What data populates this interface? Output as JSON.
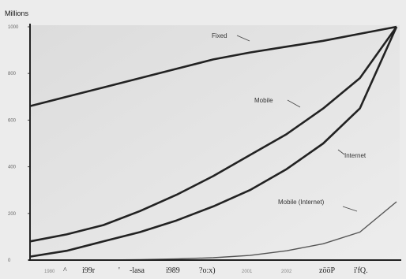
{
  "chart_data": {
    "type": "line",
    "title": "",
    "ylabel": "Millions",
    "xlabel": "",
    "y_ticks": [
      "1000",
      "800",
      "600",
      "400",
      "200",
      "0"
    ],
    "y_tick_values": [
      1000,
      800,
      600,
      400,
      200,
      0
    ],
    "x_ticks": [
      {
        "label": "1980",
        "faint": true
      },
      {
        "label": "^",
        "faint": false
      },
      {
        "label": "i99r",
        "faint": false
      },
      {
        "label": "'",
        "faint": false
      },
      {
        "label": "-lasa",
        "faint": false
      },
      {
        "label": "i989",
        "faint": false
      },
      {
        "label": "?o:x)",
        "faint": false
      },
      {
        "label": "2001",
        "faint": true
      },
      {
        "label": "2002",
        "faint": true
      },
      {
        "label": "zööP",
        "faint": false
      },
      {
        "label": "i'fQ.",
        "faint": false
      }
    ],
    "x_tick_values": [
      0,
      1,
      2,
      3,
      4,
      5,
      6,
      7,
      8,
      9,
      10
    ],
    "xlim": [
      0,
      10
    ],
    "ylim": [
      0,
      1000
    ],
    "series": [
      {
        "name": "Fixed",
        "x": [
          0,
          1,
          2,
          3,
          4,
          5,
          6,
          7,
          8,
          9,
          10
        ],
        "values": [
          660,
          700,
          740,
          780,
          820,
          860,
          890,
          915,
          940,
          970,
          1000
        ]
      },
      {
        "name": "Mobile",
        "x": [
          0,
          1,
          2,
          3,
          4,
          5,
          6,
          7,
          8,
          9,
          10
        ],
        "values": [
          80,
          110,
          150,
          210,
          280,
          360,
          450,
          540,
          650,
          780,
          1000
        ]
      },
      {
        "name": "Internet",
        "x": [
          0,
          1,
          2,
          3,
          4,
          5,
          6,
          7,
          8,
          9,
          10
        ],
        "values": [
          15,
          40,
          80,
          120,
          170,
          230,
          300,
          390,
          500,
          650,
          1000
        ]
      },
      {
        "name": "Mobile (Internet)",
        "x": [
          0,
          1,
          2,
          3,
          4,
          5,
          6,
          7,
          8,
          9,
          10
        ],
        "values": [
          0,
          0,
          0,
          2,
          5,
          10,
          20,
          40,
          70,
          120,
          250
        ]
      }
    ],
    "grid": false,
    "legend": "inline"
  }
}
